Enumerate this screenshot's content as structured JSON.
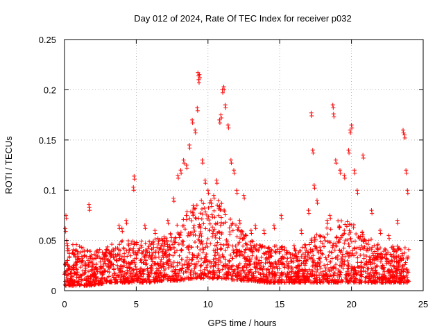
{
  "chart_data": {
    "type": "scatter",
    "title": "Day 012 of 2024, Rate Of TEC Index for receiver p032",
    "xlabel": "GPS time / hours",
    "ylabel": "ROTI / TECUs",
    "xlim": [
      0,
      25
    ],
    "ylim": [
      0,
      0.25
    ],
    "xticks": [
      0,
      5,
      10,
      15,
      20,
      25
    ],
    "yticks": [
      0,
      0.05,
      0.1,
      0.15,
      0.2,
      0.25
    ],
    "xtick_labels": [
      "0",
      "5",
      "10",
      "15",
      "20",
      "25"
    ],
    "ytick_labels": [
      "0",
      "0.05",
      "0.1",
      "0.15",
      "0.2",
      "0.25"
    ],
    "grid": true,
    "marker": "+",
    "color": "#ff0000",
    "series": [
      {
        "name": "ROTI",
        "x": [
          0.05,
          0.1,
          0.15,
          0.2,
          0.3,
          1.7,
          1.72,
          3.8,
          4.0,
          4.3,
          4.8,
          4.85,
          5.6,
          6.3,
          7.2,
          7.6,
          7.9,
          8.1,
          8.3,
          8.5,
          8.7,
          8.9,
          9.1,
          9.25,
          9.3,
          9.35,
          9.4,
          9.6,
          9.8,
          10.0,
          10.2,
          10.4,
          10.6,
          10.8,
          10.9,
          11.0,
          11.1,
          11.2,
          11.4,
          11.6,
          11.8,
          12.0,
          12.2,
          12.5,
          13.0,
          13.3,
          13.9,
          14.6,
          15.1,
          16.0,
          16.5,
          17.0,
          17.2,
          17.3,
          17.4,
          17.6,
          18.3,
          18.5,
          18.7,
          18.75,
          18.9,
          19.2,
          19.5,
          19.8,
          19.9,
          20.0,
          20.2,
          20.4,
          20.8,
          21.4,
          22.0,
          22.6,
          23.2,
          23.6,
          23.7,
          23.8,
          23.9
        ],
        "y": [
          0.062,
          0.075,
          0.05,
          0.045,
          0.04,
          0.086,
          0.083,
          0.065,
          0.062,
          0.07,
          0.103,
          0.114,
          0.065,
          0.06,
          0.07,
          0.092,
          0.115,
          0.12,
          0.13,
          0.125,
          0.145,
          0.17,
          0.16,
          0.182,
          0.217,
          0.21,
          0.215,
          0.13,
          0.11,
          0.1,
          0.09,
          0.095,
          0.11,
          0.17,
          0.175,
          0.2,
          0.203,
          0.185,
          0.165,
          0.13,
          0.12,
          0.1,
          0.07,
          0.095,
          0.06,
          0.065,
          0.06,
          0.065,
          0.075,
          0.045,
          0.06,
          0.08,
          0.177,
          0.14,
          0.105,
          0.09,
          0.07,
          0.075,
          0.185,
          0.176,
          0.13,
          0.12,
          0.115,
          0.14,
          0.16,
          0.165,
          0.12,
          0.1,
          0.135,
          0.08,
          0.06,
          0.055,
          0.07,
          0.16,
          0.155,
          0.12,
          0.1
        ]
      }
    ],
    "background_density": [
      {
        "x": 0,
        "lo": 0.005,
        "hi": 0.05
      },
      {
        "x": 1,
        "lo": 0.005,
        "hi": 0.045
      },
      {
        "x": 2,
        "lo": 0.005,
        "hi": 0.04
      },
      {
        "x": 3,
        "lo": 0.008,
        "hi": 0.045
      },
      {
        "x": 4,
        "lo": 0.008,
        "hi": 0.05
      },
      {
        "x": 5,
        "lo": 0.008,
        "hi": 0.05
      },
      {
        "x": 6,
        "lo": 0.008,
        "hi": 0.05
      },
      {
        "x": 7,
        "lo": 0.01,
        "hi": 0.055
      },
      {
        "x": 8,
        "lo": 0.01,
        "hi": 0.07
      },
      {
        "x": 9,
        "lo": 0.012,
        "hi": 0.09
      },
      {
        "x": 10,
        "lo": 0.012,
        "hi": 0.09
      },
      {
        "x": 11,
        "lo": 0.012,
        "hi": 0.09
      },
      {
        "x": 12,
        "lo": 0.01,
        "hi": 0.065
      },
      {
        "x": 13,
        "lo": 0.01,
        "hi": 0.05
      },
      {
        "x": 14,
        "lo": 0.008,
        "hi": 0.045
      },
      {
        "x": 15,
        "lo": 0.008,
        "hi": 0.045
      },
      {
        "x": 16,
        "lo": 0.008,
        "hi": 0.04
      },
      {
        "x": 17,
        "lo": 0.008,
        "hi": 0.05
      },
      {
        "x": 18,
        "lo": 0.008,
        "hi": 0.06
      },
      {
        "x": 19,
        "lo": 0.008,
        "hi": 0.07
      },
      {
        "x": 20,
        "lo": 0.008,
        "hi": 0.07
      },
      {
        "x": 21,
        "lo": 0.008,
        "hi": 0.055
      },
      {
        "x": 22,
        "lo": 0.008,
        "hi": 0.045
      },
      {
        "x": 23,
        "lo": 0.008,
        "hi": 0.045
      },
      {
        "x": 24,
        "lo": 0.008,
        "hi": 0.045
      }
    ]
  }
}
